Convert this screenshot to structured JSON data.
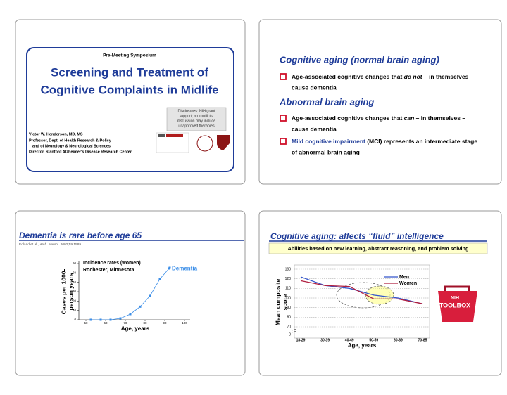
{
  "slide1": {
    "kicker": "Pre-Meeting Symposium",
    "title": [
      "Screening and Treatment of",
      "Cognitive Complaints in Midlife"
    ],
    "disclosure": [
      "Disclosures:  NIH grant",
      "support;  no conflicts;",
      "discussion may include",
      "unapproved therapies"
    ],
    "author": [
      "Victor W. Henderson, MD, MS",
      "Professor, Dept. of Health Research & Policy",
      "and of Neurology & Neurological Sciences",
      "Director, Stanford Alzheimer's Disease Research Center"
    ]
  },
  "slide2": {
    "heading1": "Cognitive aging (normal brain aging)",
    "bullet1": [
      [
        "Age-associated cognitive changes that ",
        "do not",
        " – in themselves –"
      ],
      "cause dementia"
    ],
    "heading2": "Abnormal brain aging",
    "bullet2": [
      [
        "Age-associated cognitive changes that ",
        "can",
        " – in themselves –"
      ],
      "cause dementia"
    ],
    "bullet3": [
      [
        "Mild cognitive impairment",
        " (MCI) represents an intermediate stage"
      ],
      "of abnormal brain aging"
    ]
  },
  "slide3": {
    "title": "Dementia is rare before age 65",
    "citation": [
      "Edland et al., ",
      "Arch. Neurol.",
      " 2002;59:1589"
    ]
  },
  "slide4": {
    "title": "Cognitive aging:  affects “fluid” intelligence",
    "banner": "Abilities based on new learning, abstract reasoning, and problem solving",
    "toolbox": [
      "NIH",
      "TOOLBOX"
    ]
  },
  "chart_data": [
    {
      "type": "scatter-line",
      "title": [
        "Incidence rates (women)",
        "Rochester, Minnesota"
      ],
      "ylabel": [
        "Cases per 1000-",
        "person years"
      ],
      "xlabel": "Age, years",
      "x": [
        52.5,
        57.5,
        62.5,
        67.5,
        72.5,
        77.5,
        82.5,
        87.5,
        92.5
      ],
      "series": [
        {
          "name": "Dementia",
          "color": "#3b8ee8",
          "values": [
            0,
            0,
            0,
            1.5,
            6,
            14,
            25.5,
            43.5,
            55.5
          ]
        }
      ],
      "xlim": [
        50,
        100
      ],
      "xticks": [
        50,
        60,
        70,
        80,
        90,
        100
      ],
      "ylim": [
        0,
        60
      ],
      "yticks": [
        0,
        10,
        20,
        30,
        40,
        50,
        60
      ]
    },
    {
      "type": "line",
      "ylabel": [
        "Mean composite",
        "score"
      ],
      "xlabel": "Age, years",
      "categories": [
        "18-29",
        "30-39",
        "40-49",
        "50-59",
        "60-69",
        "70-85"
      ],
      "series": [
        {
          "name": "Men",
          "color": "#3355cc",
          "values": [
            122,
            113,
            110,
            103,
            100,
            94
          ]
        },
        {
          "name": "Women",
          "color": "#b02040",
          "values": [
            118,
            113,
            112,
            99,
            99,
            94
          ]
        }
      ],
      "ylim": [
        70,
        130
      ],
      "yticks": [
        70,
        80,
        90,
        100,
        110,
        120,
        130
      ],
      "axis_break_label": "0",
      "grid": true
    }
  ]
}
